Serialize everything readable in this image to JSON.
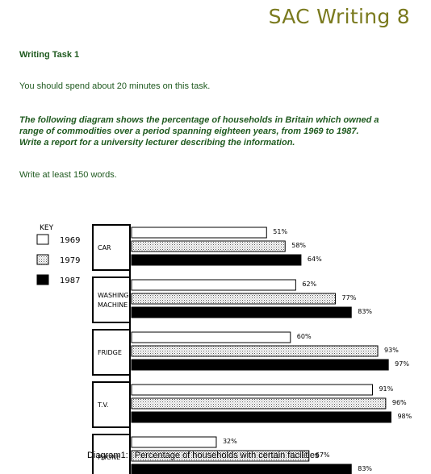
{
  "header": {
    "brand": "SAC Writing 8",
    "task_title": "Writing Task 1",
    "instruction": "You should spend about 20 minutes on this task.",
    "prompt_lines": [
      "The following diagram shows the percentage of households in Britain which owned a",
      "range of commodities over a period spanning eighteen years, from 1969 to 1987.",
      "Write a report for a university lecturer describing the information."
    ],
    "min_words": "Write at least 150 words."
  },
  "caption": {
    "label": "Diagram1:",
    "text": "Percentage of households with certain facilities"
  },
  "colors": {
    "text_green": "#1f5a1f",
    "brand_olive": "#7a7a1e",
    "bar_1969": "#ffffff",
    "bar_1979": "dotted",
    "bar_1987": "#000000"
  },
  "chart_data": {
    "type": "bar",
    "orientation": "horizontal",
    "key_title": "KEY",
    "categories": [
      [
        "CAR"
      ],
      [
        "WASHING",
        "MACHINE"
      ],
      [
        "FRIDGE"
      ],
      [
        "T.V."
      ],
      [
        "PHONE"
      ]
    ],
    "series": [
      {
        "name": "1969",
        "pattern": "white",
        "values": [
          51,
          62,
          60,
          91,
          32
        ]
      },
      {
        "name": "1979",
        "pattern": "dotted",
        "values": [
          58,
          77,
          93,
          96,
          67
        ]
      },
      {
        "name": "1987",
        "pattern": "black",
        "values": [
          64,
          83,
          97,
          98,
          83
        ]
      }
    ],
    "value_suffix": "%",
    "title": "",
    "xlabel": "",
    "ylabel": "",
    "xlim": [
      0,
      100
    ],
    "grid": false,
    "legend_position": "left"
  }
}
